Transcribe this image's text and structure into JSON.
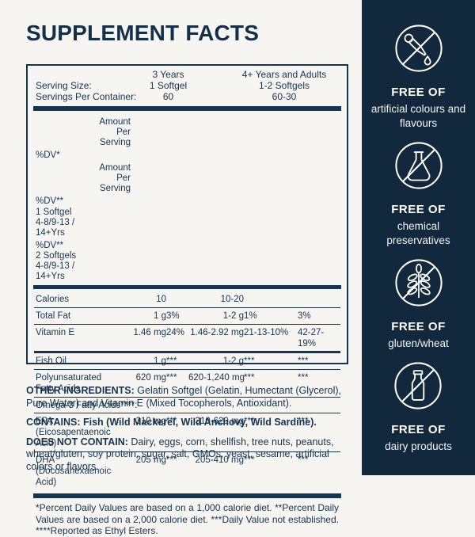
{
  "title": "SUPPLEMENT FACTS",
  "colors": {
    "page_bg": "#f6f5f2",
    "navy_text": "#163450",
    "sidebar_bg": "#12293d",
    "sidebar_text": "#ffffff"
  },
  "table": {
    "serving": {
      "age_col1": "3 Years",
      "age_col2": "4+ Years and Adults",
      "serving_size_label": "Serving Size:",
      "serving_size_col1": "1 Softgel",
      "serving_size_col2": "1-2 Softgels",
      "servings_label": "Servings Per Container:",
      "servings_col1": "60",
      "servings_col2": "60-30"
    },
    "headers": {
      "amount1": "Amount\nPer\nServing",
      "dv1": "%DV*",
      "amount2": "Amount\nPer\nServing",
      "dv2": "%DV**\n1 Softgel\n4-8/9-13 /\n14+Yrs",
      "dv3": "%DV**\n2 Softgels\n4-8/9-13 /\n14+Yrs"
    },
    "rows": [
      {
        "name": "Calories",
        "amount1": "10",
        "dv1": "",
        "amount2": "10-20",
        "dv2": "",
        "dv3": "",
        "sep": "",
        "indent": 0
      },
      {
        "name": "Total Fat",
        "amount1": "1 g",
        "dv1": "3%",
        "amount2": "1-2 g",
        "dv2": "1%",
        "dv3": "3%",
        "sep": "thin",
        "indent": 0
      },
      {
        "name": "Vitamin E",
        "amount1": "1.46 mg",
        "dv1": "24%",
        "amount2": "1.46-2.92 mg",
        "dv2": "21-13-10%",
        "dv3": "42-27-19%",
        "sep": "thin",
        "indent": 0
      },
      {
        "name": "Fish Oil",
        "amount1": "1 g",
        "dv1": "***",
        "amount2": "1-2 g",
        "dv2": "***",
        "dv3": "***",
        "sep": "thick",
        "indent": 0
      },
      {
        "name": "Polyunsaturated\nFatty Acids",
        "amount1": "620 mg",
        "dv1": "***",
        "amount2": "620-1,240 mg",
        "dv2": "***",
        "dv3": "***",
        "sep": "thin",
        "indent": 1
      },
      {
        "name": "Omega-3 Fatty Acids****:",
        "heading": true,
        "sep": "thin",
        "indent": 2
      },
      {
        "name": "EPA\n(Eicosapentaenoic Acid)",
        "amount1": "310 mg",
        "dv1": "***",
        "amount2": "310-620 mg",
        "dv2": "***",
        "dv3": "***",
        "sep": "thin",
        "indent": 3
      },
      {
        "name": "DHA\n(Docosahexaenoic Acid)",
        "amount1": "205 mg",
        "dv1": "***",
        "amount2": "205-410 mg",
        "dv2": "***",
        "dv3": "***",
        "sep": "thin",
        "indent": 3
      }
    ],
    "footnote": "*Percent Daily Values are based on a 1,000 calorie diet. **Percent Daily Values are based on a 2,000 calorie diet. ***Daily Value not established. ****Reported as Ethyl Esters."
  },
  "sections": [
    {
      "label": "OTHER INGREDIENTS:",
      "text": "Gelatin Softgel (Gelatin, Humectant (Glycerol), Pure Water) and Vitamin E (Mixed Tocopherols, Antioxidant).",
      "strong": false
    },
    {
      "label": "CONTAINS:",
      "text": "Fish (Wild Mackerel, Wild Anchovy, Wild Sardine).",
      "strong": true
    },
    {
      "label": "DOES NOT CONTAIN:",
      "text": "Dairy, eggs, corn, shellfish, tree nuts, peanuts, wheat/gluten, soy protein, sugar, salt, GMOs, yeast, sesame, artificial colors or flavors.",
      "strong": false
    }
  ],
  "sidebar": {
    "badges": [
      {
        "icon": "no-dropper-icon",
        "title": "FREE OF",
        "subtitle": "artificial colours and flavours"
      },
      {
        "icon": "no-flask-icon",
        "title": "FREE OF",
        "subtitle": "chemical preservatives"
      },
      {
        "icon": "no-wheat-icon",
        "title": "FREE OF",
        "subtitle": "gluten/wheat"
      },
      {
        "icon": "no-milk-bottle-icon",
        "title": "FREE OF",
        "subtitle": "dairy products"
      }
    ]
  }
}
